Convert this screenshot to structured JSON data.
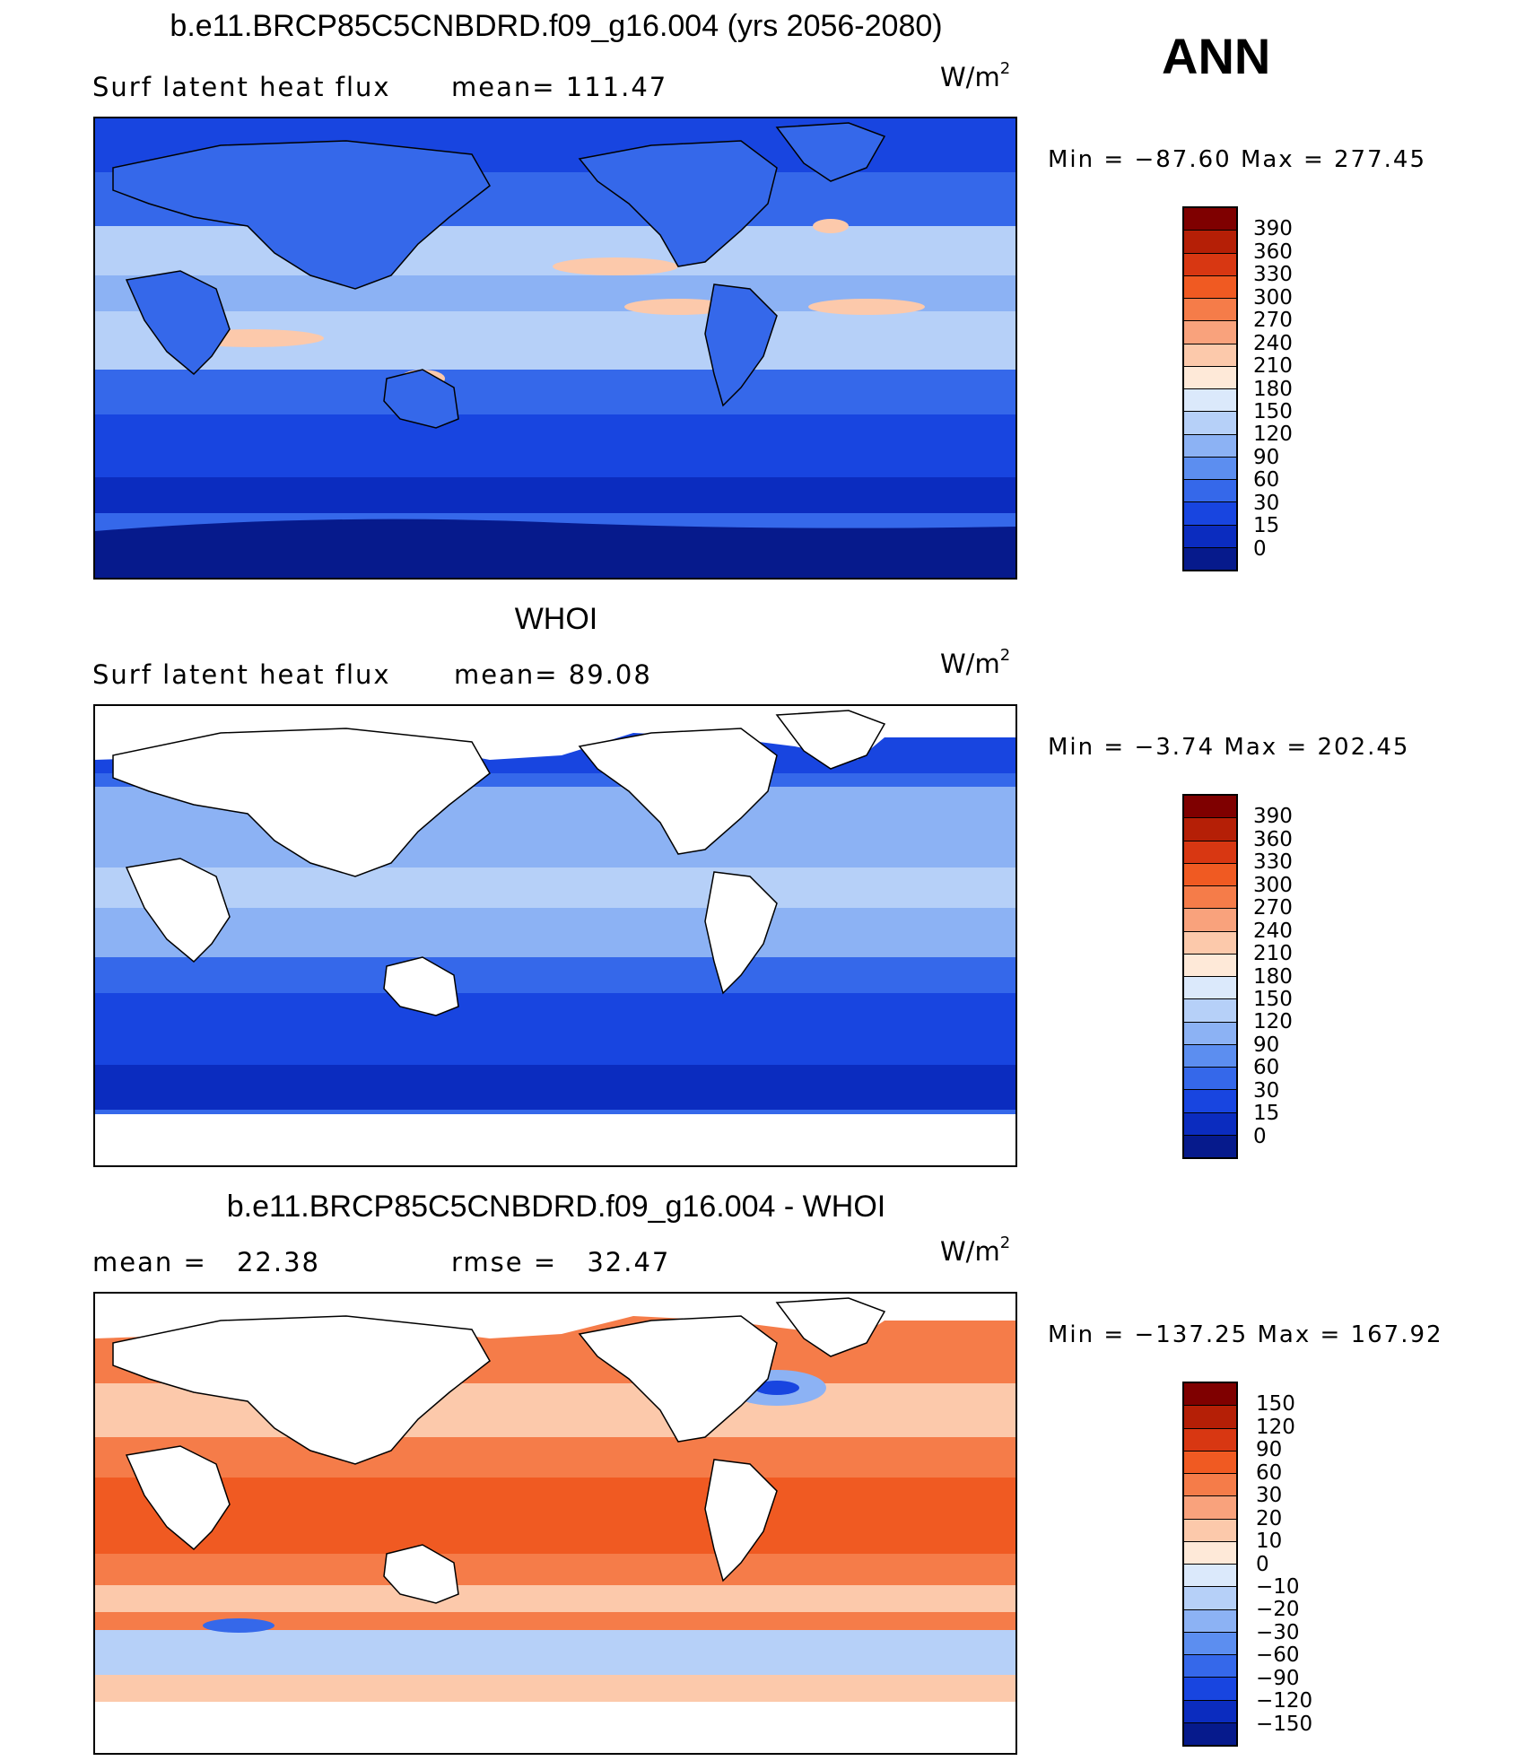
{
  "season": "ANN",
  "units": {
    "base": "W/m",
    "exp": "2"
  },
  "panels": [
    {
      "title": "b.e11.BRCP85C5CNBDRD.f09_g16.004 (yrs 2056-2080)",
      "variable": "Surf latent heat flux",
      "stat_label": "mean=",
      "stat_value": "111.47",
      "min_label": "Min =",
      "min_value": "−87.60",
      "max_label": "Max =",
      "max_value": "277.45",
      "colorbar": {
        "labels": [
          "390",
          "360",
          "330",
          "300",
          "270",
          "240",
          "210",
          "180",
          "150",
          "120",
          "90",
          "60",
          "30",
          "15",
          "0"
        ],
        "colors": [
          "#7f0000",
          "#b51f06",
          "#d83712",
          "#f05a22",
          "#f57c49",
          "#f9a27c",
          "#fcc9ab",
          "#fee9d8",
          "#dbe9fb",
          "#b6d0f8",
          "#8cb2f4",
          "#5c8ef0",
          "#3568ea",
          "#1845e0",
          "#0b2cbf",
          "#061a8c"
        ]
      }
    },
    {
      "title": "WHOI",
      "variable": "Surf latent heat flux",
      "stat_label": "mean=",
      "stat_value": "89.08",
      "min_label": "Min =",
      "min_value": "−3.74",
      "max_label": "Max =",
      "max_value": "202.45",
      "colorbar": {
        "labels": [
          "390",
          "360",
          "330",
          "300",
          "270",
          "240",
          "210",
          "180",
          "150",
          "120",
          "90",
          "60",
          "30",
          "15",
          "0"
        ],
        "colors": [
          "#7f0000",
          "#b51f06",
          "#d83712",
          "#f05a22",
          "#f57c49",
          "#f9a27c",
          "#fcc9ab",
          "#fee9d8",
          "#dbe9fb",
          "#b6d0f8",
          "#8cb2f4",
          "#5c8ef0",
          "#3568ea",
          "#1845e0",
          "#0b2cbf",
          "#061a8c"
        ]
      }
    },
    {
      "title": "b.e11.BRCP85C5CNBDRD.f09_g16.004 - WHOI",
      "stat_label": "mean =",
      "stat_value": "22.38",
      "rmse_label": "rmse =",
      "rmse_value": "32.47",
      "min_label": "Min =",
      "min_value": "−137.25",
      "max_label": "Max =",
      "max_value": "167.92",
      "colorbar": {
        "labels": [
          "150",
          "120",
          "90",
          "60",
          "30",
          "20",
          "10",
          "0",
          "−10",
          "−20",
          "−30",
          "−60",
          "−90",
          "−120",
          "−150"
        ],
        "colors": [
          "#7f0000",
          "#b51f06",
          "#d83712",
          "#f05a22",
          "#f57c49",
          "#f9a27c",
          "#fcc9ab",
          "#fee9d8",
          "#dbe9fb",
          "#b6d0f8",
          "#8cb2f4",
          "#5c8ef0",
          "#3568ea",
          "#1845e0",
          "#0b2cbf",
          "#061a8c"
        ]
      }
    }
  ],
  "map_colors": {
    "ocean_deep": "#1845e0",
    "ocean_mid": "#3568ea",
    "ocean_light": "#8cb2f4",
    "ocean_pale": "#b6d0f8",
    "land": "#3568ea",
    "land_dark": "#0b2cbf",
    "antarctic": "#061a8c",
    "warm_pale": "#fcc9ab",
    "warm_mid": "#f57c49",
    "warm_strong": "#f05a22",
    "masked": "#ffffff"
  }
}
